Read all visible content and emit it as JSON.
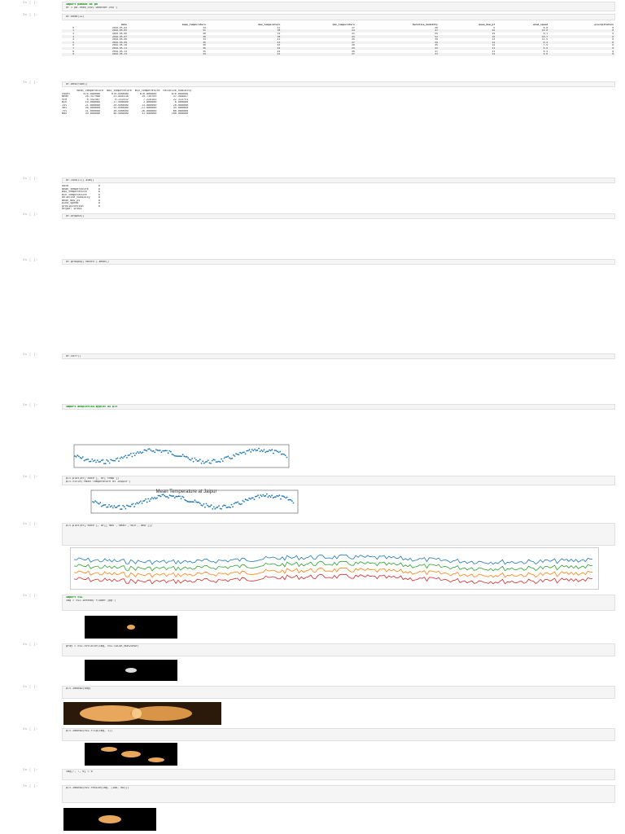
{
  "notebook": {
    "cells": [
      {
        "prompt": "In [ ]:",
        "code": [
          "import pandas as pd",
          "df = pd.read_csv('weather.csv')"
        ]
      },
      {
        "prompt": "In [ ]:",
        "code": [
          "df.head(12)"
        ]
      },
      {
        "prompt": "In [ ]:",
        "code": [
          "df.describe()"
        ]
      },
      {
        "prompt": "In [ ]:",
        "code": [
          "df.isnull().sum()"
        ]
      },
      {
        "prompt": "In [ ]:",
        "code": [
          "df.dropna()"
        ]
      },
      {
        "prompt": "In [ ]:",
        "code": [
          "df.groupby('month').mean()"
        ]
      },
      {
        "prompt": "In [ ]:",
        "code": [
          "df.corr()"
        ]
      },
      {
        "prompt": "In [ ]:",
        "code": [
          "import matplotlib.pyplot as plt"
        ]
      },
      {
        "prompt": "In [ ]:",
        "code": [
          "plt.plot(df['date'], df['temp'])",
          "plt.title('Mean Temperature at Jaipur')"
        ]
      },
      {
        "prompt": "In [ ]:",
        "code": [
          "plt.plot(df['date'], df[['max','mean','min','dew']])"
        ]
      },
      {
        "prompt": "In [ ]:",
        "code": [
          "import cv2",
          "img = cv2.imread('flower.jpg')"
        ]
      },
      {
        "prompt": "In [ ]:",
        "code": [
          "gray = cv2.cvtColor(img, cv2.COLOR_BGR2GRAY)"
        ]
      },
      {
        "prompt": "In [ ]:",
        "code": [
          "plt.imshow(img)"
        ]
      },
      {
        "prompt": "In [ ]:",
        "code": [
          "plt.imshow(cv2.flip(img, 1))"
        ]
      },
      {
        "prompt": "In [ ]:",
        "code": [
          "img[:, :, 0] = 0"
        ]
      },
      {
        "prompt": "In [ ]:",
        "code": [
          "plt.imshow(cv2.resize(img, (100, 60)))"
        ]
      }
    ]
  },
  "table": {
    "headers": [
      "",
      "date",
      "mean_temperature",
      "max_temperature",
      "min_temperature",
      "Relative_humidity",
      "mean_dew_pt",
      "wind_speed",
      "precipitation"
    ],
    "rows": [
      [
        "0",
        "2016-05-04",
        "34",
        "41",
        "27",
        "20",
        "5",
        "8.8",
        "0"
      ],
      [
        "1",
        "2016-05-05",
        "31",
        "38",
        "24",
        "41",
        "16",
        "12.0",
        "0"
      ],
      [
        "2",
        "2016-05-06",
        "28",
        "34",
        "21",
        "59",
        "19",
        "9.1",
        "5"
      ],
      [
        "3",
        "2016-05-07",
        "30",
        "38",
        "23",
        "52",
        "19",
        "10.7",
        "0"
      ],
      [
        "4",
        "2016-05-08",
        "34",
        "41",
        "26",
        "30",
        "13",
        "11.5",
        "0"
      ],
      [
        "5",
        "2016-05-09",
        "35",
        "43",
        "27",
        "29",
        "14",
        "8.2",
        "0"
      ],
      [
        "6",
        "2016-05-10",
        "36",
        "43",
        "28",
        "25",
        "12",
        "7.9",
        "0"
      ],
      [
        "7",
        "2016-05-11",
        "36",
        "42",
        "29",
        "22",
        "11",
        "6.9",
        "0"
      ],
      [
        "8",
        "2016-05-12",
        "35",
        "42",
        "28",
        "27",
        "13",
        "8.4",
        "0"
      ],
      [
        "9",
        "2016-05-13",
        "34",
        "41",
        "27",
        "31",
        "14",
        "9.6",
        "0"
      ]
    ]
  },
  "stats_text": [
    "         mean_temperature  max_temperature  min_temperature  Relative_humidity",
    "count        676.000000       676.000000       676.000000         676.000000",
    "mean          26.357988        33.004438        19.730769          47.568047",
    "std            6.542587         6.252432         7.228183          22.315741",
    "min           10.000000        17.000000         3.000000           6.000000",
    "25%           21.000000        28.000000        13.000000          28.000000",
    "50%           28.000000        34.000000        21.000000          45.000000",
    "75%           31.000000        38.000000        26.000000          66.000000",
    "max           39.000000        46.000000        31.000000         100.000000"
  ],
  "null_text": [
    "date                  0",
    "mean_temperature      0",
    "max_temperature       0",
    "min_temperature       0",
    "Relative_humidity     0",
    "mean_dew_pt           0",
    "wind_speed            0",
    "precipitation         0",
    "dtype: int64"
  ],
  "chart_data": [
    {
      "type": "scatter",
      "title": "",
      "xlabel": "",
      "ylabel": "",
      "series": [
        {
          "color": "#1f77b4"
        }
      ]
    },
    {
      "type": "scatter",
      "title": "Mean Temperature at Jaipur",
      "xlabel": "",
      "ylabel": "",
      "series": [
        {
          "color": "#1f77b4"
        }
      ]
    },
    {
      "type": "line",
      "title": "",
      "series": [
        {
          "color": "#1f77b4"
        },
        {
          "color": "#2ca02c"
        },
        {
          "color": "#ff7f0e"
        },
        {
          "color": "#d62728"
        }
      ]
    }
  ],
  "colors": {
    "cell_bg": "#f5f5f5",
    "prompt": "#8a8fa8",
    "flower": "#e8a75c"
  }
}
